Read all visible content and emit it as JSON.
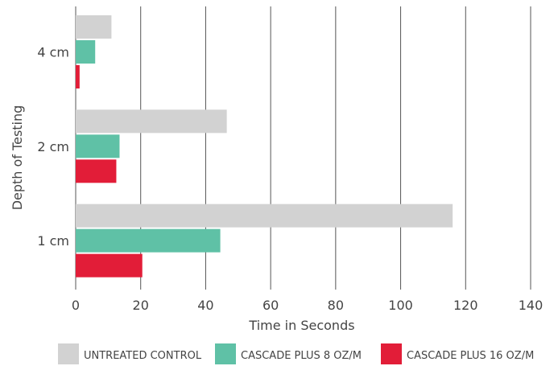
{
  "chart_data": {
    "type": "bar",
    "orientation": "horizontal",
    "categories": [
      "4 cm",
      "2 cm",
      "1 cm"
    ],
    "series": [
      {
        "name": "UNTREATED CONTROL",
        "color": "#d2d2d2",
        "values": [
          11,
          46.5,
          116
        ]
      },
      {
        "name": "CASCADE PLUS 8 OZ/M",
        "color": "#5fc1a6",
        "values": [
          6,
          13.5,
          44.5
        ]
      },
      {
        "name": "CASCADE PLUS 16 OZ/M",
        "color": "#e21d38",
        "values": [
          1.2,
          12.5,
          20.5
        ]
      }
    ],
    "xlabel": "Time in Seconds",
    "ylabel": "Depth of Testing",
    "xlim": [
      0,
      140
    ],
    "xticks": [
      0,
      20,
      40,
      60,
      80,
      100,
      120,
      140
    ],
    "grid": "vertical",
    "legend_position": "bottom"
  }
}
